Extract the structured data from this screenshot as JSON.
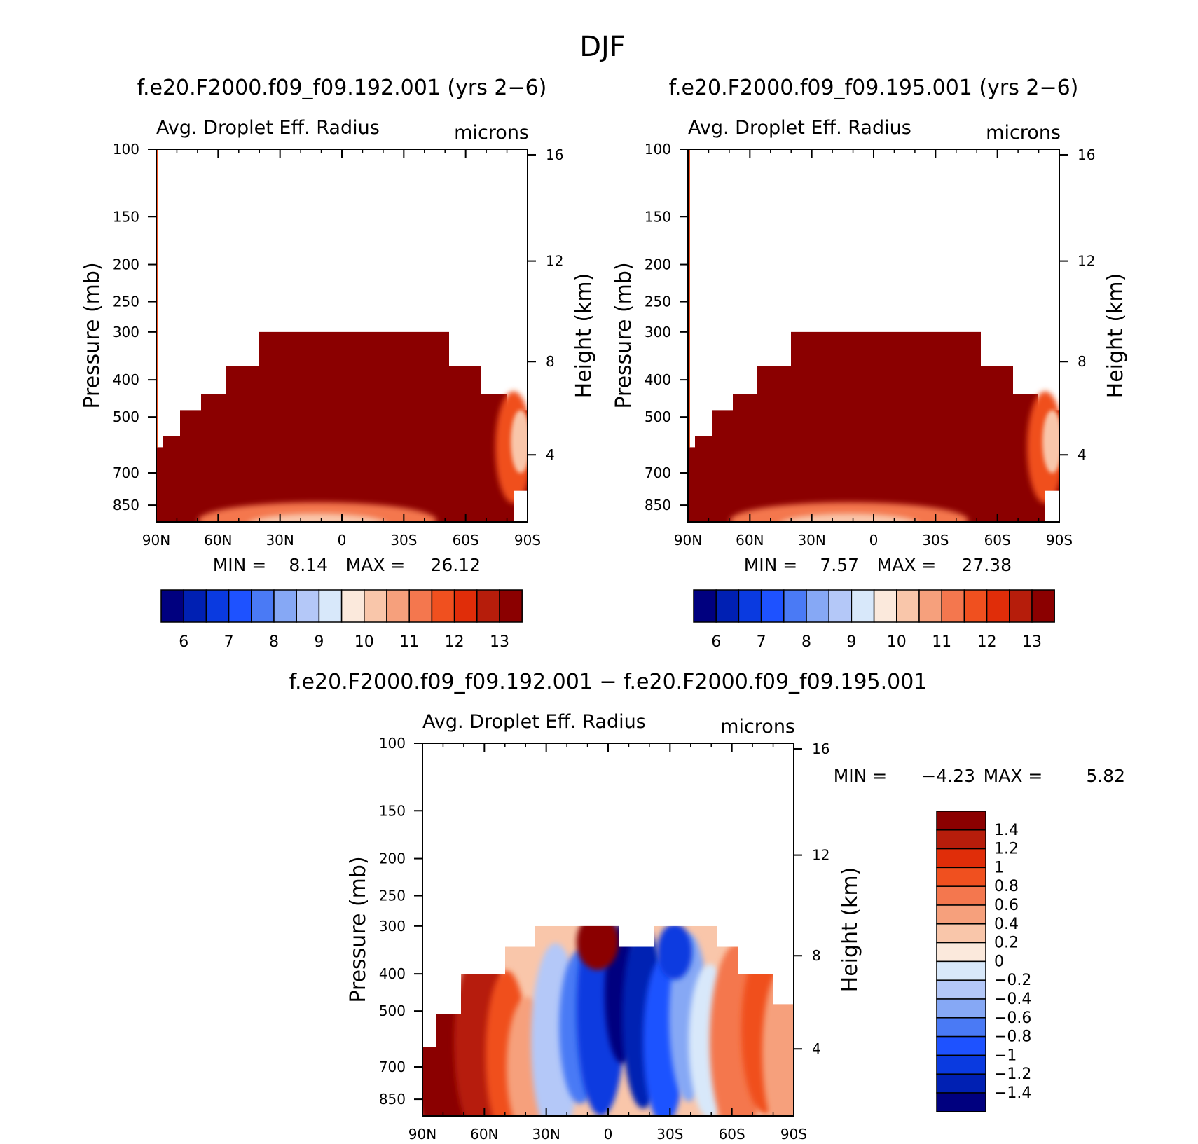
{
  "page_title": "DJF",
  "chart_data": [
    {
      "type": "heatmap",
      "id": "panel_a",
      "title": "f.e20.F2000.f09_f09.192.001 (yrs 2−6)",
      "subtitle_left": "Avg. Droplet Eff. Radius",
      "subtitle_right": "microns",
      "ylabel": "Pressure (mb)",
      "y2label": "Height (km)",
      "x_ticks": [
        "90N",
        "60N",
        "30N",
        "0",
        "30S",
        "60S",
        "90S"
      ],
      "y_ticks": [
        "100",
        "150",
        "200",
        "250",
        "300",
        "400",
        "500",
        "700",
        "850"
      ],
      "y2_ticks": [
        "16",
        "12",
        "8",
        "4"
      ],
      "ylim": [
        1000,
        100
      ],
      "min_label": "MIN =",
      "min_value": "8.14",
      "max_label": "MAX =",
      "max_value": "26.12",
      "colorbar_labels": [
        "6",
        "7",
        "8",
        "9",
        "10",
        "11",
        "12",
        "13"
      ],
      "dominant_value": "> 13 microns"
    },
    {
      "type": "heatmap",
      "id": "panel_b",
      "title": "f.e20.F2000.f09_f09.195.001 (yrs 2−6)",
      "subtitle_left": "Avg. Droplet Eff. Radius",
      "subtitle_right": "microns",
      "ylabel": "Pressure (mb)",
      "y2label": "Height (km)",
      "x_ticks": [
        "90N",
        "60N",
        "30N",
        "0",
        "30S",
        "60S",
        "90S"
      ],
      "y_ticks": [
        "100",
        "150",
        "200",
        "250",
        "300",
        "400",
        "500",
        "700",
        "850"
      ],
      "y2_ticks": [
        "16",
        "12",
        "8",
        "4"
      ],
      "ylim": [
        1000,
        100
      ],
      "min_label": "MIN =",
      "min_value": "7.57",
      "max_label": "MAX =",
      "max_value": "27.38",
      "colorbar_labels": [
        "6",
        "7",
        "8",
        "9",
        "10",
        "11",
        "12",
        "13"
      ],
      "dominant_value": "> 13 microns"
    },
    {
      "type": "heatmap",
      "id": "panel_diff",
      "title": "f.e20.F2000.f09_f09.192.001 − f.e20.F2000.f09_f09.195.001",
      "subtitle_left": "Avg. Droplet Eff. Radius",
      "subtitle_right": "microns",
      "ylabel": "Pressure (mb)",
      "y2label": "Height (km)",
      "x_ticks": [
        "90N",
        "60N",
        "30N",
        "0",
        "30S",
        "60S",
        "90S"
      ],
      "y_ticks": [
        "100",
        "150",
        "200",
        "250",
        "300",
        "400",
        "500",
        "700",
        "850"
      ],
      "y2_ticks": [
        "16",
        "12",
        "8",
        "4"
      ],
      "ylim": [
        1000,
        100
      ],
      "min_label": "MIN =",
      "min_value": "−4.23",
      "max_label": "MAX =",
      "max_value": "5.82",
      "colorbar_labels": [
        "1.4",
        "1.2",
        "1",
        "0.8",
        "0.6",
        "0.4",
        "0.2",
        "0",
        "−0.2",
        "−0.4",
        "−0.6",
        "−0.8",
        "−1",
        "−1.2",
        "−1.4"
      ]
    }
  ],
  "colors": {
    "seq_palette": [
      "#00007f",
      "#0020b3",
      "#0a3ae0",
      "#1e52ff",
      "#4a7af5",
      "#86a8f5",
      "#b4c8f8",
      "#d8e8fa",
      "#fbe9dc",
      "#f9c6aa",
      "#f6a07c",
      "#f4774e",
      "#f0501f",
      "#e02d09",
      "#b61d0b",
      "#8b0000"
    ],
    "div_palette": [
      "#8b0000",
      "#b61d0b",
      "#e02d09",
      "#f0501f",
      "#f4774e",
      "#f6a07c",
      "#f9c6aa",
      "#fbe9dc",
      "#d8e8fa",
      "#b4c8f8",
      "#86a8f5",
      "#4a7af5",
      "#1e52ff",
      "#0a3ae0",
      "#0020b3",
      "#00007f"
    ]
  }
}
